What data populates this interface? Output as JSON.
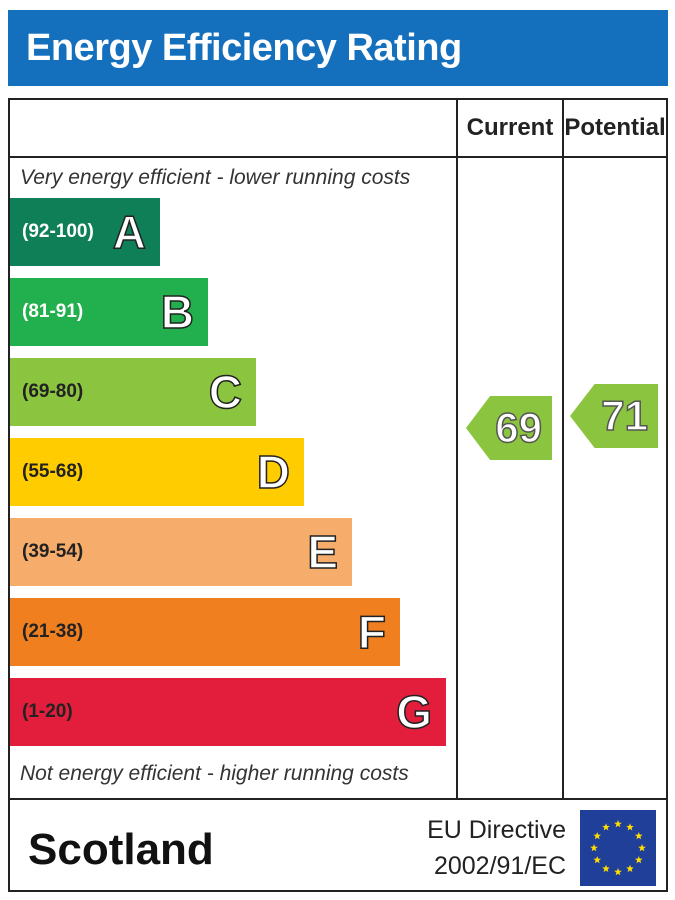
{
  "title": "Energy Efficiency Rating",
  "columns": {
    "current": "Current",
    "potential": "Potential"
  },
  "notes": {
    "top": "Very energy efficient - lower running costs",
    "bottom": "Not energy efficient - higher running costs"
  },
  "bands": [
    {
      "range": "(92-100)",
      "letter": "A",
      "color": "#0f7f58",
      "range_color": "#ffffff"
    },
    {
      "range": "(81-91)",
      "letter": "B",
      "color": "#22b04e",
      "range_color": "#ffffff"
    },
    {
      "range": "(69-80)",
      "letter": "C",
      "color": "#8bc43f",
      "range_color": "#222222"
    },
    {
      "range": "(55-68)",
      "letter": "D",
      "color": "#ffcc00",
      "range_color": "#222222"
    },
    {
      "range": "(39-54)",
      "letter": "E",
      "color": "#f6ac6b",
      "range_color": "#222222"
    },
    {
      "range": "(21-38)",
      "letter": "F",
      "color": "#ef7f1f",
      "range_color": "#222222"
    },
    {
      "range": "(1-20)",
      "letter": "G",
      "color": "#e31d3c",
      "range_color": "#222222"
    }
  ],
  "ratings": {
    "current": {
      "value": "69",
      "color": "#8bc43f"
    },
    "potential": {
      "value": "71",
      "color": "#8bc43f"
    }
  },
  "footer": {
    "region": "Scotland",
    "directive_line1": "EU Directive",
    "directive_line2": "2002/91/EC",
    "flag_icon": "eu-flag-icon",
    "flag_color": "#1f3f98",
    "star_color": "#ffdd00"
  }
}
